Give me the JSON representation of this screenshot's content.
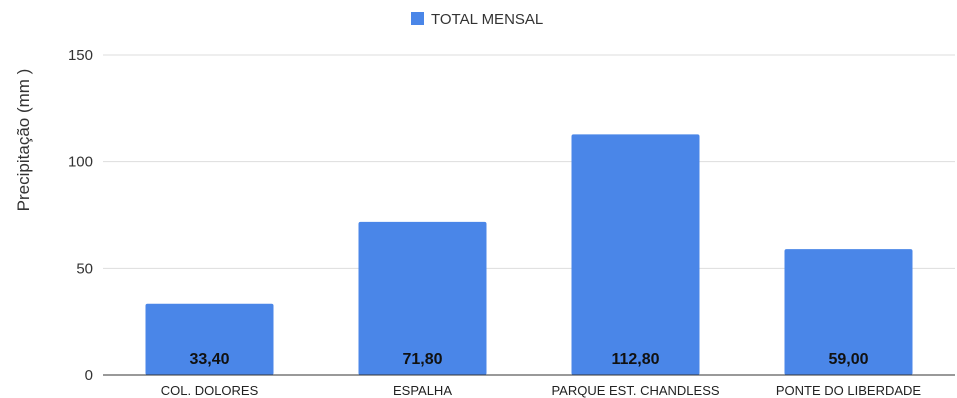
{
  "chart_data": {
    "type": "bar",
    "categories": [
      "COL. DOLORES",
      "ESPALHA",
      "PARQUE EST. CHANDLESS",
      "PONTE DO LIBERDADE"
    ],
    "series": [
      {
        "name": "TOTAL MENSAL",
        "values": [
          33.4,
          71.8,
          112.8,
          59.0
        ],
        "value_labels": [
          "33,40",
          "71,80",
          "112,80",
          "59,00"
        ],
        "color": "#4a86e8"
      }
    ],
    "ylabel": "Precipitação (mm )",
    "ylim": [
      0,
      150
    ],
    "yticks": [
      0,
      50,
      100,
      150
    ],
    "ytick_labels": [
      "0",
      "50",
      "100",
      "150"
    ],
    "grid": true,
    "legend_position": "top-center"
  },
  "colors": {
    "bar": "#4a86e8",
    "grid": "#dddddd",
    "axis": "#333333"
  }
}
